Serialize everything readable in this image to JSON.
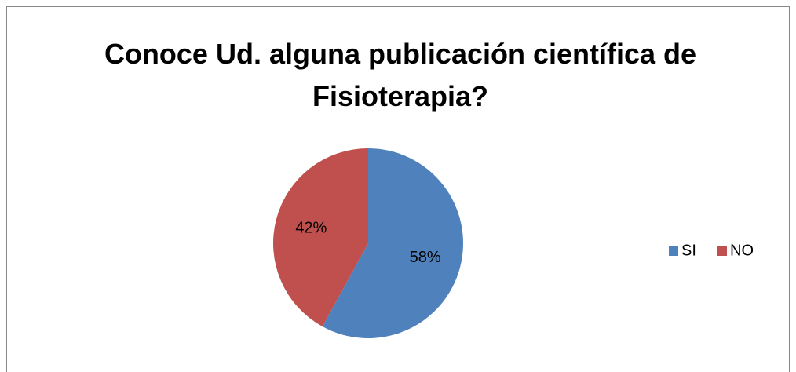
{
  "chart_data": {
    "type": "pie",
    "title": "Conoce Ud. alguna publicación científica de Fisioterapia?",
    "categories": [
      "SI",
      "NO"
    ],
    "values": [
      58,
      42
    ],
    "value_labels": [
      "58%",
      "42%"
    ],
    "colors": [
      "#4f81bd",
      "#c0504d"
    ],
    "legend": "right"
  }
}
